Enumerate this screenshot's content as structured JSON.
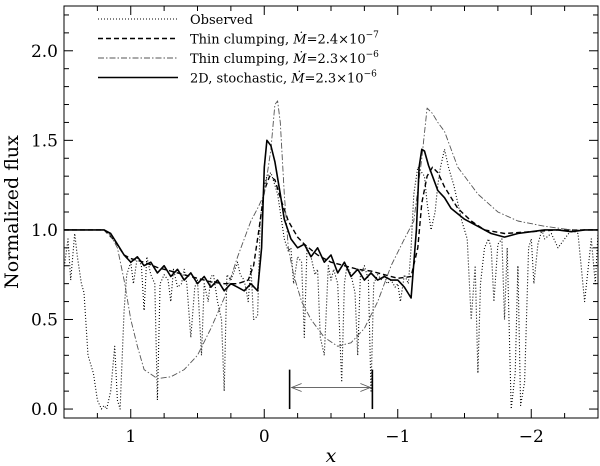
{
  "chart_data": {
    "type": "line",
    "title": "",
    "xlabel": "x",
    "ylabel": "Normalized flux",
    "xlim": [
      1.5,
      -2.5
    ],
    "ylim": [
      -0.05,
      2.25
    ],
    "x_reversed": true,
    "grid": false,
    "legend_position": "top-left",
    "x_ticks": [
      {
        "value": 1,
        "label": "1"
      },
      {
        "value": 0,
        "label": "0"
      },
      {
        "value": -1,
        "label": "−1"
      },
      {
        "value": -2,
        "label": "−2"
      }
    ],
    "y_ticks": [
      {
        "value": 0.0,
        "label": "0.0"
      },
      {
        "value": 0.5,
        "label": "0.5"
      },
      {
        "value": 1.0,
        "label": "1.0"
      },
      {
        "value": 1.5,
        "label": "1.5"
      },
      {
        "value": 2.0,
        "label": "2.0"
      }
    ],
    "annotation": {
      "type": "bracket",
      "x_from": -0.19,
      "x_to": -0.81,
      "y_low": 0.0,
      "y_high": 0.22,
      "arrow_y": 0.12
    },
    "series": [
      {
        "name": "Observed",
        "name_suffix": "",
        "style": "dotted",
        "x": [
          1.5,
          1.47,
          1.45,
          1.42,
          1.4,
          1.37,
          1.35,
          1.32,
          1.28,
          1.25,
          1.22,
          1.2,
          1.18,
          1.15,
          1.12,
          1.1,
          1.08,
          1.05,
          1.03,
          1.0,
          0.98,
          0.95,
          0.92,
          0.9,
          0.88,
          0.85,
          0.82,
          0.8,
          0.78,
          0.75,
          0.72,
          0.7,
          0.68,
          0.65,
          0.62,
          0.6,
          0.58,
          0.55,
          0.52,
          0.5,
          0.47,
          0.45,
          0.42,
          0.4,
          0.38,
          0.35,
          0.32,
          0.3,
          0.28,
          0.25,
          0.22,
          0.2,
          0.18,
          0.15,
          0.12,
          0.1,
          0.08,
          0.05,
          0.03,
          0.0,
          -0.02,
          -0.05,
          -0.08,
          -0.1,
          -0.12,
          -0.15,
          -0.18,
          -0.2,
          -0.22,
          -0.25,
          -0.28,
          -0.3,
          -0.32,
          -0.35,
          -0.38,
          -0.4,
          -0.42,
          -0.45,
          -0.48,
          -0.5,
          -0.52,
          -0.55,
          -0.58,
          -0.6,
          -0.62,
          -0.65,
          -0.68,
          -0.7,
          -0.72,
          -0.75,
          -0.78,
          -0.8,
          -0.82,
          -0.85,
          -0.88,
          -0.9,
          -0.92,
          -0.95,
          -0.98,
          -1.0,
          -1.02,
          -1.05,
          -1.08,
          -1.1,
          -1.12,
          -1.15,
          -1.18,
          -1.2,
          -1.22,
          -1.25,
          -1.28,
          -1.3,
          -1.32,
          -1.35,
          -1.38,
          -1.4,
          -1.42,
          -1.45,
          -1.48,
          -1.5,
          -1.52,
          -1.55,
          -1.58,
          -1.6,
          -1.62,
          -1.65,
          -1.68,
          -1.7,
          -1.72,
          -1.75,
          -1.78,
          -1.8,
          -1.82,
          -1.85,
          -1.88,
          -1.9,
          -1.92,
          -1.95,
          -1.98,
          -2.0,
          -2.02,
          -2.05,
          -2.08,
          -2.1,
          -2.15,
          -2.2,
          -2.25,
          -2.3,
          -2.35,
          -2.4,
          -2.45,
          -2.48,
          -2.5
        ],
        "y": [
          0.78,
          0.95,
          0.72,
          0.98,
          0.85,
          0.7,
          0.65,
          0.3,
          0.2,
          0.05,
          0.0,
          0.02,
          0.0,
          0.1,
          0.35,
          0.05,
          0.0,
          0.55,
          0.75,
          0.82,
          0.7,
          0.85,
          0.8,
          0.55,
          0.85,
          0.75,
          0.7,
          0.05,
          0.7,
          0.75,
          0.72,
          0.6,
          0.78,
          0.68,
          0.7,
          0.78,
          0.7,
          0.4,
          0.68,
          0.72,
          0.3,
          0.7,
          0.6,
          0.74,
          0.75,
          0.6,
          0.5,
          0.1,
          0.75,
          0.72,
          0.78,
          0.82,
          0.75,
          0.72,
          0.6,
          0.8,
          0.5,
          0.52,
          1.05,
          1.25,
          1.3,
          1.32,
          1.25,
          1.2,
          1.1,
          0.95,
          0.88,
          0.9,
          0.7,
          0.85,
          0.82,
          0.4,
          0.9,
          0.85,
          0.75,
          0.78,
          0.4,
          0.3,
          0.8,
          0.72,
          0.78,
          0.7,
          0.15,
          0.7,
          0.8,
          0.75,
          0.65,
          0.3,
          0.75,
          0.8,
          0.72,
          0.1,
          0.7,
          0.75,
          0.72,
          0.75,
          0.7,
          0.72,
          0.68,
          0.7,
          0.6,
          0.75,
          0.7,
          0.9,
          1.2,
          1.35,
          1.32,
          1.3,
          1.15,
          1.0,
          1.1,
          1.25,
          1.35,
          1.45,
          1.35,
          1.3,
          1.25,
          1.15,
          1.05,
          1.0,
          0.95,
          0.5,
          0.8,
          0.2,
          0.7,
          0.9,
          0.95,
          0.9,
          0.6,
          0.92,
          0.95,
          0.5,
          0.9,
          0.0,
          0.2,
          0.8,
          0.02,
          0.15,
          0.9,
          0.95,
          0.7,
          0.92,
          1.0,
          0.95,
          0.98,
          0.9,
          0.95,
          1.0,
          0.98,
          0.6,
          0.95,
          0.7,
          0.98
        ]
      },
      {
        "name": "Thin clumping, ",
        "name_suffix": "=2.4×10",
        "exponent": "−7",
        "style": "dashed",
        "x": [
          1.5,
          1.3,
          1.2,
          1.12,
          1.05,
          1.0,
          0.9,
          0.8,
          0.7,
          0.6,
          0.5,
          0.4,
          0.3,
          0.2,
          0.12,
          0.08,
          0.04,
          0.0,
          -0.04,
          -0.08,
          -0.12,
          -0.18,
          -0.25,
          -0.3,
          -0.4,
          -0.5,
          -0.6,
          -0.7,
          -0.8,
          -0.9,
          -1.0,
          -1.1,
          -1.15,
          -1.18,
          -1.22,
          -1.26,
          -1.3,
          -1.35,
          -1.45,
          -1.55,
          -1.65,
          -1.8,
          -2.0,
          -2.2,
          -2.5
        ],
        "y": [
          1.0,
          1.0,
          1.0,
          0.94,
          0.86,
          0.84,
          0.82,
          0.79,
          0.77,
          0.75,
          0.73,
          0.71,
          0.7,
          0.7,
          0.72,
          0.8,
          1.0,
          1.22,
          1.3,
          1.28,
          1.18,
          1.05,
          0.96,
          0.92,
          0.86,
          0.82,
          0.8,
          0.78,
          0.77,
          0.75,
          0.73,
          0.74,
          0.9,
          1.15,
          1.3,
          1.35,
          1.32,
          1.24,
          1.12,
          1.05,
          1.0,
          0.98,
          0.99,
          1.0,
          1.0
        ]
      },
      {
        "name": "Thin clumping, ",
        "name_suffix": "=2.3×10",
        "exponent": "−6",
        "style": "dashdot",
        "x": [
          1.5,
          1.3,
          1.2,
          1.15,
          1.1,
          1.05,
          1.0,
          0.95,
          0.9,
          0.8,
          0.7,
          0.6,
          0.5,
          0.4,
          0.3,
          0.2,
          0.1,
          0.05,
          0.0,
          -0.05,
          -0.08,
          -0.1,
          -0.12,
          -0.15,
          -0.18,
          -0.22,
          -0.28,
          -0.35,
          -0.45,
          -0.55,
          -0.65,
          -0.75,
          -0.85,
          -0.95,
          -1.05,
          -1.12,
          -1.18,
          -1.22,
          -1.26,
          -1.3,
          -1.35,
          -1.45,
          -1.6,
          -1.75,
          -1.9,
          -2.1,
          -2.3,
          -2.5
        ],
        "y": [
          1.0,
          1.0,
          1.0,
          0.97,
          0.9,
          0.72,
          0.5,
          0.35,
          0.22,
          0.17,
          0.18,
          0.22,
          0.3,
          0.45,
          0.62,
          0.85,
          1.05,
          1.12,
          1.2,
          1.45,
          1.7,
          1.72,
          1.6,
          1.2,
          0.9,
          0.75,
          0.6,
          0.5,
          0.4,
          0.35,
          0.37,
          0.45,
          0.6,
          0.8,
          0.95,
          1.05,
          1.4,
          1.68,
          1.65,
          1.6,
          1.55,
          1.35,
          1.2,
          1.1,
          1.05,
          1.02,
          1.0,
          1.0
        ]
      },
      {
        "name": "2D, stochastic,  ",
        "name_suffix": "=2.3×10",
        "exponent": "−6",
        "style": "solid",
        "x": [
          1.5,
          1.3,
          1.2,
          1.15,
          1.1,
          1.05,
          1.0,
          0.95,
          0.9,
          0.85,
          0.8,
          0.75,
          0.7,
          0.65,
          0.6,
          0.55,
          0.5,
          0.45,
          0.4,
          0.35,
          0.3,
          0.25,
          0.2,
          0.15,
          0.1,
          0.05,
          0.02,
          0.0,
          -0.02,
          -0.05,
          -0.08,
          -0.12,
          -0.15,
          -0.2,
          -0.25,
          -0.3,
          -0.35,
          -0.4,
          -0.45,
          -0.5,
          -0.55,
          -0.6,
          -0.65,
          -0.7,
          -0.75,
          -0.8,
          -0.85,
          -0.9,
          -0.95,
          -1.0,
          -1.05,
          -1.1,
          -1.14,
          -1.16,
          -1.18,
          -1.2,
          -1.23,
          -1.26,
          -1.3,
          -1.35,
          -1.4,
          -1.5,
          -1.6,
          -1.7,
          -1.8,
          -1.9,
          -2.0,
          -2.1,
          -2.2,
          -2.3,
          -2.4,
          -2.5
        ],
        "y": [
          1.0,
          1.0,
          1.0,
          0.98,
          0.92,
          0.86,
          0.82,
          0.85,
          0.8,
          0.82,
          0.76,
          0.8,
          0.74,
          0.78,
          0.72,
          0.76,
          0.7,
          0.74,
          0.68,
          0.72,
          0.66,
          0.7,
          0.68,
          0.66,
          0.7,
          0.66,
          0.9,
          1.35,
          1.5,
          1.47,
          1.38,
          1.2,
          1.06,
          0.95,
          0.9,
          0.92,
          0.85,
          0.9,
          0.82,
          0.86,
          0.76,
          0.82,
          0.74,
          0.78,
          0.72,
          0.76,
          0.72,
          0.74,
          0.72,
          0.72,
          0.68,
          0.62,
          1.0,
          1.35,
          1.45,
          1.44,
          1.36,
          1.3,
          1.22,
          1.18,
          1.12,
          1.06,
          1.02,
          0.98,
          0.96,
          0.98,
          0.99,
          1.0,
          1.0,
          0.99,
          1.0,
          1.0
        ]
      }
    ]
  }
}
